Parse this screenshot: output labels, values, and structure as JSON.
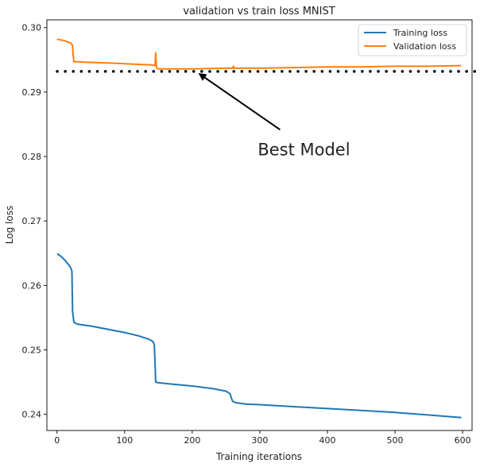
{
  "chart_data": {
    "type": "line",
    "title": "validation vs train loss MNIST",
    "xlabel": "Training iterations",
    "ylabel": "Log loss",
    "xlim": [
      -15,
      614
    ],
    "ylim": [
      0.2375,
      0.3012
    ],
    "xticks": [
      0,
      100,
      200,
      300,
      400,
      500,
      600
    ],
    "yticks": [
      0.24,
      0.25,
      0.26,
      0.27,
      0.28,
      0.29,
      0.3
    ],
    "grid": false,
    "legend_position": "top-right",
    "series": [
      {
        "name": "Training loss",
        "color": "#1f77b4",
        "x": [
          0,
          5,
          10,
          15,
          20,
          22,
          23,
          25,
          30,
          50,
          80,
          100,
          120,
          135,
          142,
          144,
          145,
          146,
          150,
          170,
          200,
          230,
          250,
          256,
          258,
          260,
          265,
          280,
          300,
          350,
          400,
          450,
          500,
          550,
          598
        ],
        "y": [
          0.2649,
          0.2646,
          0.2641,
          0.2635,
          0.2628,
          0.2622,
          0.256,
          0.2543,
          0.254,
          0.2537,
          0.2531,
          0.2527,
          0.2522,
          0.2517,
          0.2513,
          0.2508,
          0.248,
          0.245,
          0.2449,
          0.2447,
          0.2444,
          0.244,
          0.2436,
          0.2432,
          0.2425,
          0.242,
          0.2418,
          0.2416,
          0.2415,
          0.2412,
          0.2409,
          0.2406,
          0.2403,
          0.2399,
          0.2395
        ]
      },
      {
        "name": "Validation loss",
        "color": "#ff7f0e",
        "x": [
          0,
          5,
          10,
          15,
          20,
          22,
          23,
          24,
          25,
          30,
          50,
          80,
          100,
          120,
          140,
          145,
          146,
          147,
          148,
          150,
          160,
          200,
          250,
          260,
          261,
          262,
          270,
          300,
          350,
          400,
          450,
          500,
          550,
          598
        ],
        "y": [
          0.2982,
          0.2981,
          0.298,
          0.2978,
          0.2976,
          0.2974,
          0.2971,
          0.2955,
          0.2947,
          0.2947,
          0.2946,
          0.2945,
          0.2944,
          0.2943,
          0.2942,
          0.2941,
          0.2961,
          0.294,
          0.2937,
          0.2936,
          0.2936,
          0.2936,
          0.2937,
          0.2937,
          0.294,
          0.2937,
          0.2937,
          0.2937,
          0.2938,
          0.2939,
          0.2939,
          0.294,
          0.294,
          0.2941
        ]
      }
    ],
    "reference_line": {
      "y": 0.2932,
      "style": "dotted",
      "color": "#000000"
    },
    "annotation": {
      "text": "Best Model",
      "xy": [
        211,
        0.2928
      ],
      "xytext": [
        330,
        0.2812
      ]
    }
  }
}
